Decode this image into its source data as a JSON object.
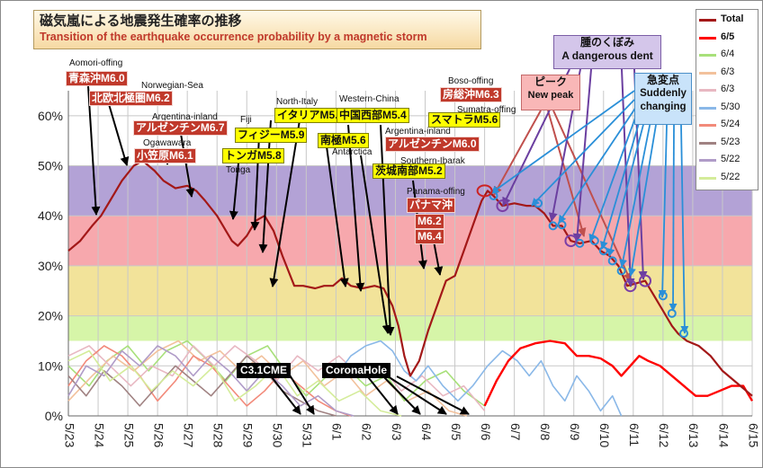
{
  "title": {
    "jp": "磁気嵐による地震発生確率の推移",
    "en": "Transition of the earthquake occurrence probability by a magnetic storm"
  },
  "colors": {
    "band_purple": "#b3a2d6",
    "band_pink": "#f7a8ad",
    "band_yellow": "#f2e39a",
    "band_green": "#d6f5a8",
    "total_line": "#a31818",
    "peak_circle": "#cc2222",
    "dent_circle": "#7b3fa6",
    "change_circle": "#2a8fd8"
  },
  "chart_data": {
    "type": "line",
    "x_ticks": [
      "5/23",
      "5/24",
      "5/25",
      "5/26",
      "5/27",
      "5/28",
      "5/29",
      "5/30",
      "5/31",
      "6/1",
      "6/2",
      "6/3",
      "6/4",
      "6/5",
      "6/6",
      "6/7",
      "6/8",
      "6/9",
      "6/10",
      "6/11",
      "6/12",
      "6/13",
      "6/14",
      "6/15"
    ],
    "y_ticks": [
      "0%",
      "10%",
      "20%",
      "30%",
      "40%",
      "50%",
      "60%"
    ],
    "ylim": [
      0,
      65
    ],
    "xlim": [
      0,
      23
    ],
    "grid": true,
    "legend_position": "right",
    "background_bands": [
      {
        "from": 15,
        "to": 20,
        "color": "#d6f5a8"
      },
      {
        "from": 20,
        "to": 30,
        "color": "#f2e39a"
      },
      {
        "from": 30,
        "to": 40,
        "color": "#f7a8ad"
      },
      {
        "from": 40,
        "to": 50,
        "color": "#b3a2d6"
      }
    ],
    "series": [
      {
        "name": "Total",
        "color": "#a31818",
        "width": 2.2,
        "points": [
          [
            0,
            33
          ],
          [
            0.4,
            35
          ],
          [
            0.8,
            38
          ],
          [
            1.1,
            40
          ],
          [
            1.4,
            43
          ],
          [
            1.8,
            47
          ],
          [
            2.2,
            50
          ],
          [
            2.5,
            51
          ],
          [
            2.9,
            49
          ],
          [
            3.2,
            47
          ],
          [
            3.6,
            45.5
          ],
          [
            4.0,
            46
          ],
          [
            4.3,
            45
          ],
          [
            4.6,
            43
          ],
          [
            5.0,
            40
          ],
          [
            5.3,
            37
          ],
          [
            5.5,
            35
          ],
          [
            5.7,
            34
          ],
          [
            6.0,
            36
          ],
          [
            6.3,
            39
          ],
          [
            6.6,
            40
          ],
          [
            6.9,
            37
          ],
          [
            7.2,
            32
          ],
          [
            7.4,
            29
          ],
          [
            7.6,
            26
          ],
          [
            7.9,
            26
          ],
          [
            8.3,
            25.5
          ],
          [
            8.6,
            26
          ],
          [
            8.9,
            26
          ],
          [
            9.2,
            27.5
          ],
          [
            9.5,
            26
          ],
          [
            9.9,
            25.5
          ],
          [
            10.3,
            26
          ],
          [
            10.6,
            25.5
          ],
          [
            10.9,
            22
          ],
          [
            11.1,
            18
          ],
          [
            11.3,
            12
          ],
          [
            11.5,
            8
          ],
          [
            11.8,
            11
          ],
          [
            12.1,
            17
          ],
          [
            12.4,
            22
          ],
          [
            12.7,
            27
          ],
          [
            13.0,
            28
          ],
          [
            13.3,
            33
          ],
          [
            13.6,
            38
          ],
          [
            13.9,
            43
          ],
          [
            14.1,
            45
          ],
          [
            14.3,
            44
          ],
          [
            14.6,
            42
          ],
          [
            15.0,
            42.5
          ],
          [
            15.4,
            42
          ],
          [
            15.7,
            42
          ],
          [
            16.0,
            40.5
          ],
          [
            16.3,
            38
          ],
          [
            16.6,
            38
          ],
          [
            16.9,
            35
          ],
          [
            17.2,
            34.5
          ],
          [
            17.6,
            35
          ],
          [
            17.9,
            33
          ],
          [
            18.2,
            32
          ],
          [
            18.5,
            30
          ],
          [
            18.8,
            26
          ],
          [
            19.1,
            26.5
          ],
          [
            19.4,
            27
          ],
          [
            19.7,
            24
          ],
          [
            20.0,
            21
          ],
          [
            20.3,
            18
          ],
          [
            20.5,
            16.5
          ],
          [
            20.8,
            15
          ],
          [
            21.2,
            14
          ],
          [
            21.6,
            12
          ],
          [
            22.0,
            9
          ],
          [
            22.4,
            7
          ],
          [
            23.0,
            4
          ]
        ]
      },
      {
        "name": "6/5",
        "color": "#ff0000",
        "width": 2.4,
        "points": [
          [
            14.0,
            2
          ],
          [
            14.4,
            7
          ],
          [
            14.8,
            11
          ],
          [
            15.2,
            13.5
          ],
          [
            15.7,
            14.5
          ],
          [
            16.2,
            15
          ],
          [
            16.7,
            14.5
          ],
          [
            17.1,
            12
          ],
          [
            17.5,
            12
          ],
          [
            17.9,
            11.5
          ],
          [
            18.3,
            10
          ],
          [
            18.6,
            8
          ],
          [
            18.9,
            10
          ],
          [
            19.2,
            12
          ],
          [
            19.5,
            11
          ],
          [
            19.9,
            10
          ],
          [
            20.3,
            8
          ],
          [
            20.7,
            6
          ],
          [
            21.1,
            4
          ],
          [
            21.5,
            4
          ],
          [
            21.9,
            5
          ],
          [
            22.3,
            6
          ],
          [
            22.7,
            6
          ],
          [
            23.0,
            3
          ]
        ]
      },
      {
        "name": "6/4",
        "color": "#a8e07a",
        "width": 1.6,
        "points": [
          [
            0,
            10
          ],
          [
            0.7,
            6
          ],
          [
            1.3,
            11
          ],
          [
            2.0,
            14
          ],
          [
            2.7,
            9
          ],
          [
            3.3,
            13
          ],
          [
            4.0,
            15
          ],
          [
            4.7,
            11
          ],
          [
            5.3,
            7
          ],
          [
            6.0,
            12
          ],
          [
            6.7,
            14
          ],
          [
            7.3,
            9
          ],
          [
            8.0,
            4
          ],
          [
            8.7,
            8
          ],
          [
            9.3,
            10
          ],
          [
            10.0,
            6
          ],
          [
            10.7,
            8
          ],
          [
            11.3,
            3
          ],
          [
            12.0,
            7
          ],
          [
            12.7,
            9
          ],
          [
            13.3,
            5
          ],
          [
            14.0,
            2
          ]
        ]
      },
      {
        "name": "6/3",
        "color": "#f2c19c",
        "width": 1.6,
        "points": [
          [
            0,
            3
          ],
          [
            0.8,
            8
          ],
          [
            1.5,
            12
          ],
          [
            2.2,
            9
          ],
          [
            3.0,
            13
          ],
          [
            3.7,
            15
          ],
          [
            4.4,
            11
          ],
          [
            5.1,
            13
          ],
          [
            5.8,
            9
          ],
          [
            6.5,
            12
          ],
          [
            7.2,
            8
          ],
          [
            7.9,
            11
          ],
          [
            8.6,
            6
          ],
          [
            9.3,
            9
          ],
          [
            10.0,
            4
          ],
          [
            10.7,
            7
          ],
          [
            11.4,
            3
          ],
          [
            12.1,
            5
          ],
          [
            12.8,
            1
          ],
          [
            13.4,
            0
          ]
        ]
      },
      {
        "name": "6/3",
        "color": "#e8b8c2",
        "width": 1.6,
        "points": [
          [
            0,
            12
          ],
          [
            0.7,
            14
          ],
          [
            1.4,
            10
          ],
          [
            2.1,
            6
          ],
          [
            2.8,
            10
          ],
          [
            3.5,
            8
          ],
          [
            4.2,
            14
          ],
          [
            4.9,
            10
          ],
          [
            5.6,
            14
          ],
          [
            6.3,
            11
          ],
          [
            7.0,
            7
          ],
          [
            7.7,
            12
          ],
          [
            8.4,
            9
          ],
          [
            9.1,
            12
          ],
          [
            9.8,
            8
          ],
          [
            10.5,
            10
          ],
          [
            11.2,
            5
          ],
          [
            11.9,
            8
          ],
          [
            12.6,
            4
          ],
          [
            13.3,
            6
          ],
          [
            14.0,
            1
          ]
        ]
      },
      {
        "name": "5/30",
        "color": "#8ab8e8",
        "width": 1.6,
        "points": [
          [
            9.0,
            8
          ],
          [
            9.5,
            12
          ],
          [
            10.0,
            14
          ],
          [
            10.5,
            15
          ],
          [
            10.9,
            13
          ],
          [
            11.3,
            9
          ],
          [
            11.7,
            7
          ],
          [
            12.1,
            10
          ],
          [
            12.6,
            6
          ],
          [
            13.1,
            3
          ],
          [
            13.6,
            6
          ],
          [
            14.1,
            10
          ],
          [
            14.6,
            13
          ],
          [
            15.1,
            11
          ],
          [
            15.5,
            8
          ],
          [
            15.9,
            11
          ],
          [
            16.3,
            6
          ],
          [
            16.7,
            3
          ],
          [
            17.1,
            8
          ],
          [
            17.5,
            5
          ],
          [
            17.9,
            1
          ],
          [
            18.3,
            4
          ],
          [
            18.6,
            0
          ]
        ]
      },
      {
        "name": "5/24",
        "color": "#f28a7a",
        "width": 1.6,
        "points": [
          [
            0,
            6
          ],
          [
            0.6,
            11
          ],
          [
            1.2,
            14
          ],
          [
            1.8,
            12
          ],
          [
            2.4,
            8
          ],
          [
            3.0,
            3
          ],
          [
            3.6,
            7
          ],
          [
            4.2,
            12
          ],
          [
            4.8,
            10
          ],
          [
            5.4,
            6
          ],
          [
            6.0,
            2
          ],
          [
            6.6,
            5
          ],
          [
            7.2,
            9
          ],
          [
            7.8,
            6
          ],
          [
            8.4,
            3
          ],
          [
            9.0,
            1
          ],
          [
            9.5,
            0
          ]
        ]
      },
      {
        "name": "5/23",
        "color": "#a08282",
        "width": 1.6,
        "points": [
          [
            0,
            8
          ],
          [
            0.6,
            4
          ],
          [
            1.2,
            9
          ],
          [
            1.8,
            6
          ],
          [
            2.4,
            2
          ],
          [
            3.0,
            6
          ],
          [
            3.6,
            10
          ],
          [
            4.2,
            7
          ],
          [
            4.8,
            4
          ],
          [
            5.4,
            8
          ],
          [
            6.0,
            12
          ],
          [
            6.6,
            9
          ],
          [
            7.2,
            5
          ],
          [
            7.8,
            3
          ],
          [
            8.4,
            1
          ],
          [
            9.0,
            0
          ]
        ]
      },
      {
        "name": "5/22",
        "color": "#b09cc8",
        "width": 1.6,
        "points": [
          [
            0,
            4
          ],
          [
            0.6,
            10
          ],
          [
            1.2,
            8
          ],
          [
            1.8,
            13
          ],
          [
            2.4,
            10
          ],
          [
            3.0,
            14
          ],
          [
            3.6,
            12
          ],
          [
            4.2,
            8
          ],
          [
            4.8,
            12
          ],
          [
            5.4,
            9
          ],
          [
            6.0,
            5
          ],
          [
            6.6,
            9
          ],
          [
            7.2,
            6
          ],
          [
            7.8,
            2
          ],
          [
            8.4,
            4
          ],
          [
            9.0,
            1
          ],
          [
            9.6,
            0
          ]
        ]
      },
      {
        "name": "5/22",
        "color": "#d4ec9a",
        "width": 1.6,
        "points": [
          [
            0,
            11
          ],
          [
            0.7,
            13
          ],
          [
            1.4,
            7
          ],
          [
            2.1,
            10
          ],
          [
            2.8,
            5
          ],
          [
            3.5,
            9
          ],
          [
            4.2,
            6
          ],
          [
            4.9,
            10
          ],
          [
            5.6,
            3
          ],
          [
            6.3,
            6
          ],
          [
            7.0,
            10
          ],
          [
            7.7,
            4
          ],
          [
            8.4,
            7
          ],
          [
            9.1,
            3
          ],
          [
            9.8,
            5
          ],
          [
            10.5,
            1
          ],
          [
            11.2,
            0
          ]
        ]
      }
    ],
    "labels_en": [
      {
        "text": "Aomori-offing"
      },
      {
        "text": "Norwegian-Sea"
      },
      {
        "text": "Argentina-inland"
      },
      {
        "text": "Ogawawara"
      },
      {
        "text": "Fiji"
      },
      {
        "text": "Tonga"
      },
      {
        "text": "North-Italy"
      },
      {
        "text": "Western-China"
      },
      {
        "text": "Antarctica"
      },
      {
        "text": "Argentina-inland"
      },
      {
        "text": "Southern-Ibarak"
      },
      {
        "text": "Panama-offing"
      },
      {
        "text": "Boso-offing"
      },
      {
        "text": "Sumatra-offing"
      }
    ],
    "labels_jp": [
      {
        "text": "青森沖M6.0"
      },
      {
        "text": "北欧北極圏M6.2"
      },
      {
        "text": "アルゼンチンM6.7"
      },
      {
        "text": "小笠原M6.1"
      },
      {
        "text": "アルゼンチンM6.0"
      },
      {
        "text": "房総沖M6.3"
      },
      {
        "text": "パナマ沖"
      },
      {
        "text": "M6.2"
      },
      {
        "text": "M6.4"
      }
    ],
    "labels_yellow": [
      {
        "text": "イタリアM5.8"
      },
      {
        "text": "フィジーM5.9"
      },
      {
        "text": "トンガM5.8"
      },
      {
        "text": "南極M5.6"
      },
      {
        "text": "中国西部M5.4"
      },
      {
        "text": "スマトラM5.6"
      },
      {
        "text": "茨城南部M5.2"
      }
    ],
    "labels_black": [
      {
        "text": "C3.1CME"
      },
      {
        "text": "CoronaHole"
      }
    ],
    "callouts": {
      "peak": {
        "jp": "ピーク",
        "en": "New peak"
      },
      "dent": {
        "jp": "腫のくぼみ",
        "en": "A dangerous dent"
      },
      "change": {
        "jp": "急変点",
        "en": "Suddenly changing"
      }
    },
    "markers": {
      "peak": [
        [
          14.0,
          45
        ]
      ],
      "dent": [
        [
          14.6,
          42
        ],
        [
          16.9,
          35
        ],
        [
          18.9,
          26
        ],
        [
          19.4,
          27
        ]
      ],
      "change": [
        [
          14.3,
          44
        ],
        [
          15.8,
          42.5
        ],
        [
          16.3,
          38
        ],
        [
          16.6,
          38.2
        ],
        [
          17.2,
          34.5
        ],
        [
          17.7,
          35
        ],
        [
          18.0,
          33
        ],
        [
          18.3,
          31
        ],
        [
          18.6,
          29
        ],
        [
          20.0,
          24
        ],
        [
          20.3,
          20.5
        ],
        [
          20.7,
          16.5
        ]
      ]
    }
  }
}
